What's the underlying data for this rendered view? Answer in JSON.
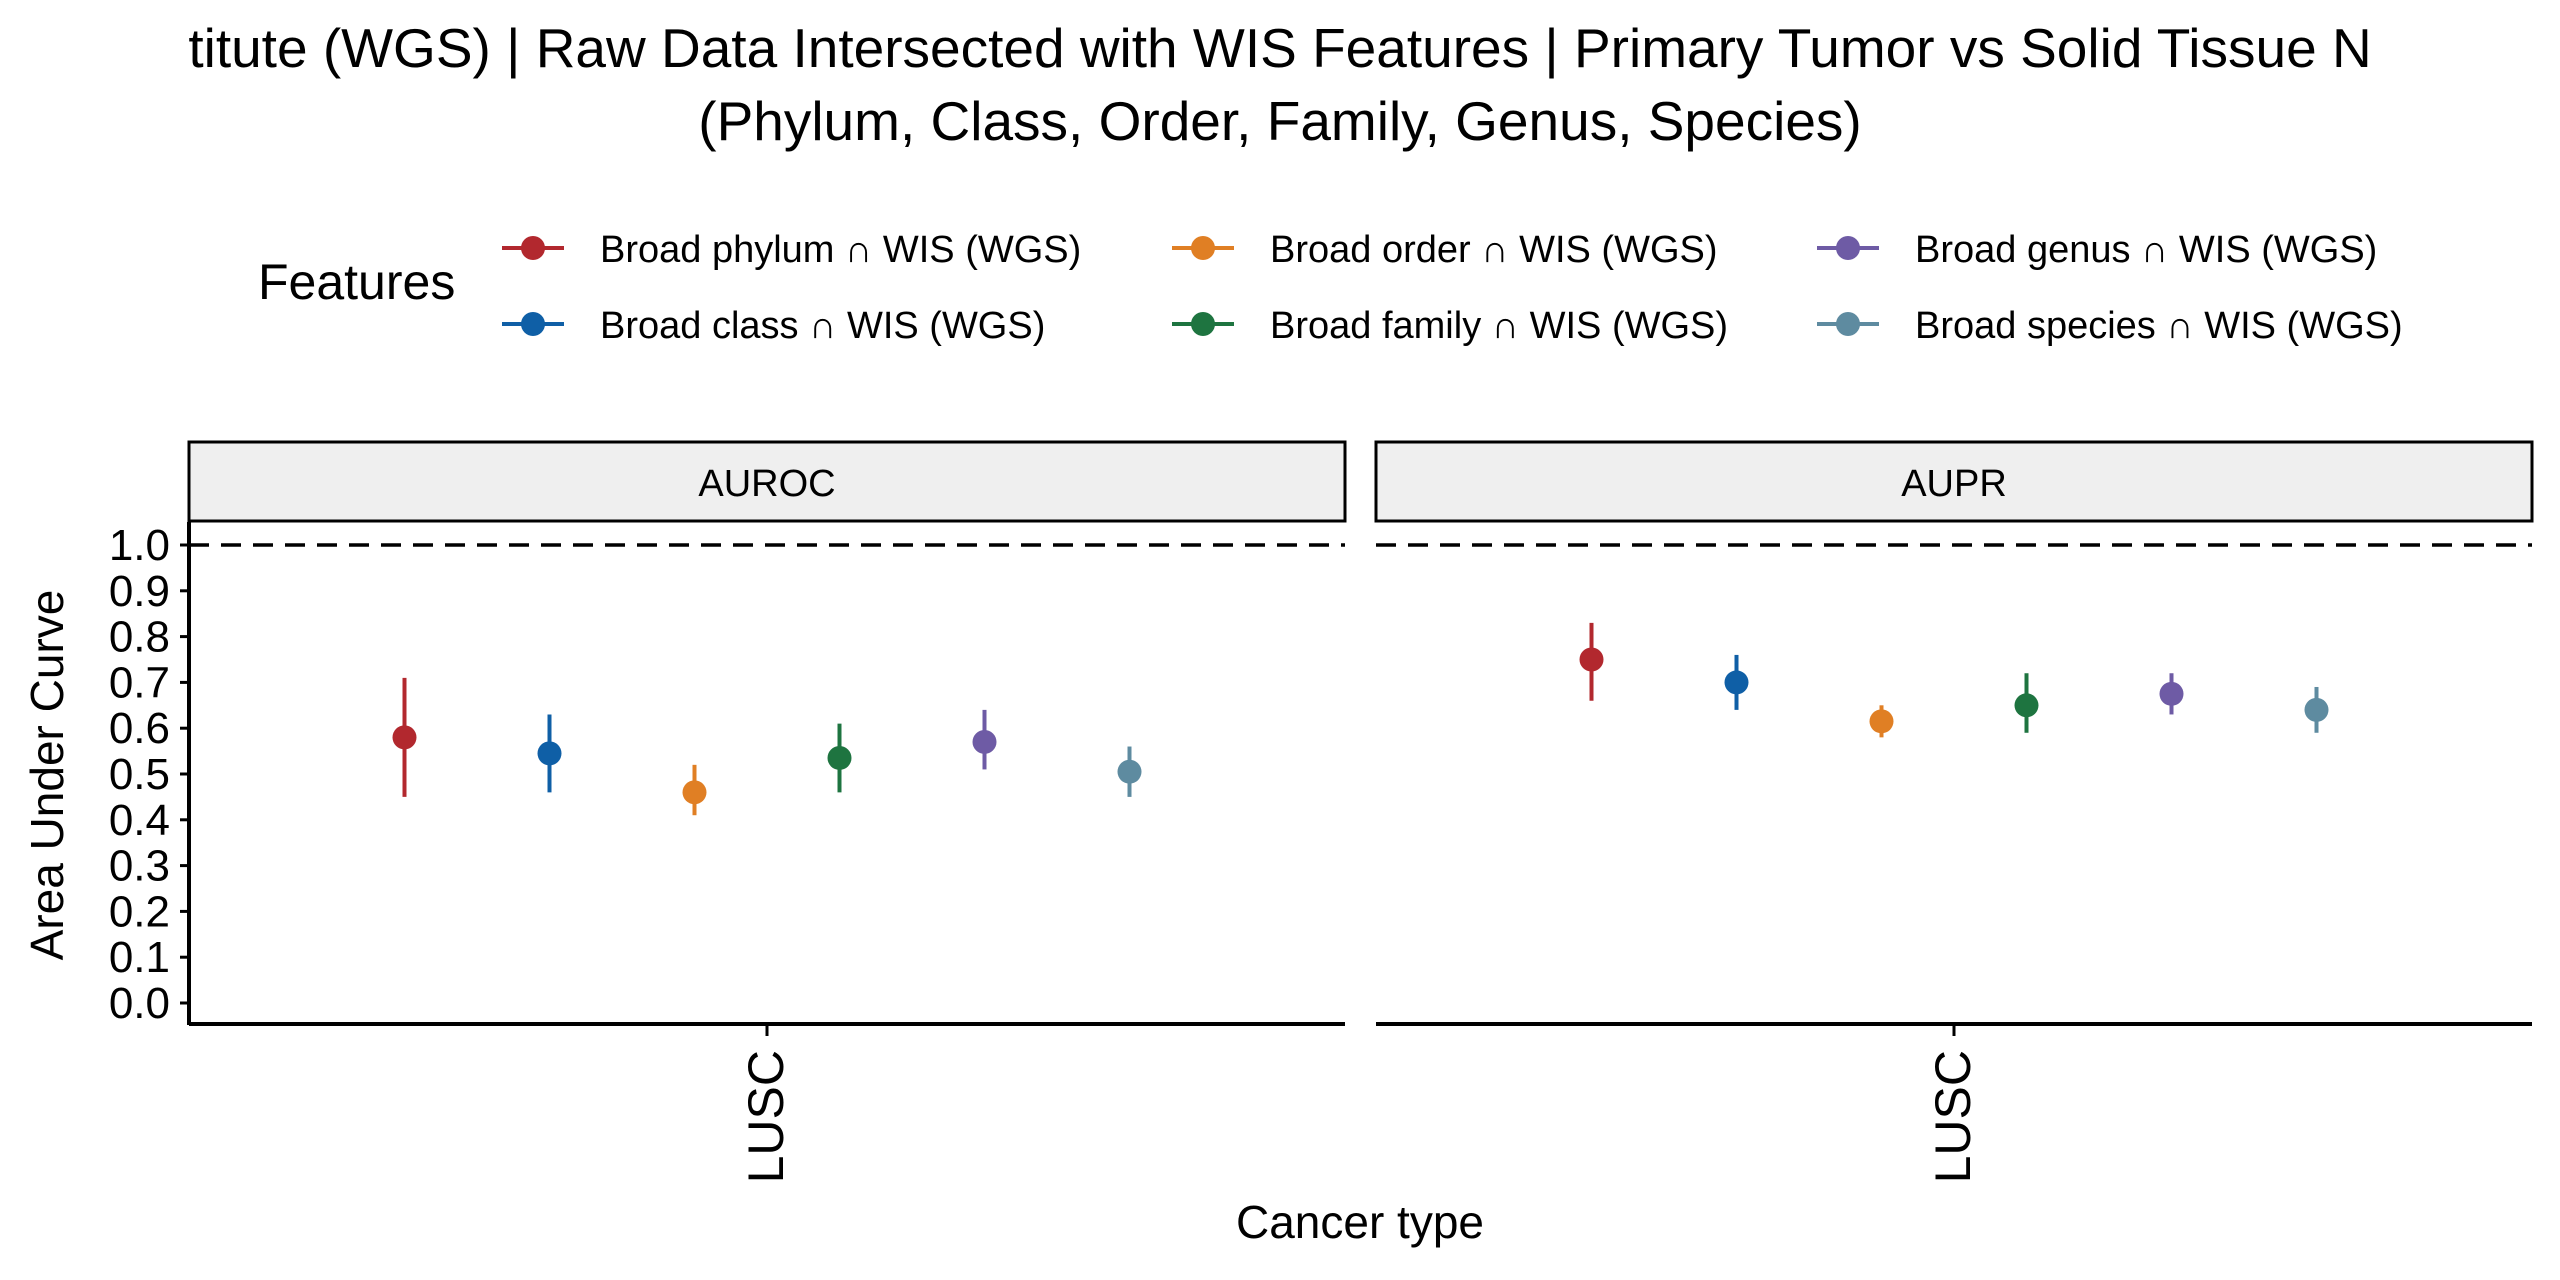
{
  "chart_data": {
    "type": "scatter",
    "title_line1": "titute (WGS) | Raw Data Intersected with WIS Features  | Primary Tumor vs Solid Tissue N",
    "title_line2": "(Phylum, Class, Order, Family, Genus, Species)",
    "xlabel": "Cancer type",
    "ylabel": "Area Under Curve",
    "ylim": [
      0,
      1
    ],
    "yticks": [
      "0.0",
      "0.1",
      "0.2",
      "0.3",
      "0.4",
      "0.5",
      "0.6",
      "0.7",
      "0.8",
      "0.9",
      "1.0"
    ],
    "reference_line": 1.0,
    "grid": false,
    "legend": {
      "title": "Features",
      "position": "top"
    },
    "panels": [
      {
        "label": "AUROC",
        "category": "LUSC",
        "series": [
          {
            "name": "Broad phylum ∩ WIS (WGS)",
            "value": 0.58,
            "low": 0.45,
            "high": 0.71
          },
          {
            "name": "Broad class ∩ WIS (WGS)",
            "value": 0.545,
            "low": 0.46,
            "high": 0.63
          },
          {
            "name": "Broad order ∩ WIS (WGS)",
            "value": 0.46,
            "low": 0.41,
            "high": 0.52
          },
          {
            "name": "Broad family ∩ WIS (WGS)",
            "value": 0.535,
            "low": 0.46,
            "high": 0.61
          },
          {
            "name": "Broad genus ∩ WIS (WGS)",
            "value": 0.57,
            "low": 0.51,
            "high": 0.64
          },
          {
            "name": "Broad species ∩ WIS (WGS)",
            "value": 0.505,
            "low": 0.45,
            "high": 0.56
          }
        ]
      },
      {
        "label": "AUPR",
        "category": "LUSC",
        "series": [
          {
            "name": "Broad phylum ∩ WIS (WGS)",
            "value": 0.75,
            "low": 0.66,
            "high": 0.83
          },
          {
            "name": "Broad class ∩ WIS (WGS)",
            "value": 0.7,
            "low": 0.64,
            "high": 0.76
          },
          {
            "name": "Broad order ∩ WIS (WGS)",
            "value": 0.615,
            "low": 0.58,
            "high": 0.65
          },
          {
            "name": "Broad family ∩ WIS (WGS)",
            "value": 0.65,
            "low": 0.59,
            "high": 0.72
          },
          {
            "name": "Broad genus ∩ WIS (WGS)",
            "value": 0.675,
            "low": 0.63,
            "high": 0.72
          },
          {
            "name": "Broad species ∩ WIS (WGS)",
            "value": 0.64,
            "low": 0.59,
            "high": 0.69
          }
        ]
      }
    ],
    "colors": {
      "Broad phylum ∩ WIS (WGS)": "#B2282E",
      "Broad class ∩ WIS (WGS)": "#0F5FA6",
      "Broad order ∩ WIS (WGS)": "#E07F24",
      "Broad family ∩ WIS (WGS)": "#1E7440",
      "Broad genus ∩ WIS (WGS)": "#6E5BA5",
      "Broad species ∩ WIS (WGS)": "#5E8BA0"
    },
    "legend_order": [
      "Broad phylum ∩ WIS (WGS)",
      "Broad class ∩ WIS (WGS)",
      "Broad order ∩ WIS (WGS)",
      "Broad family ∩ WIS (WGS)",
      "Broad genus ∩ WIS (WGS)",
      "Broad species ∩ WIS (WGS)"
    ]
  }
}
